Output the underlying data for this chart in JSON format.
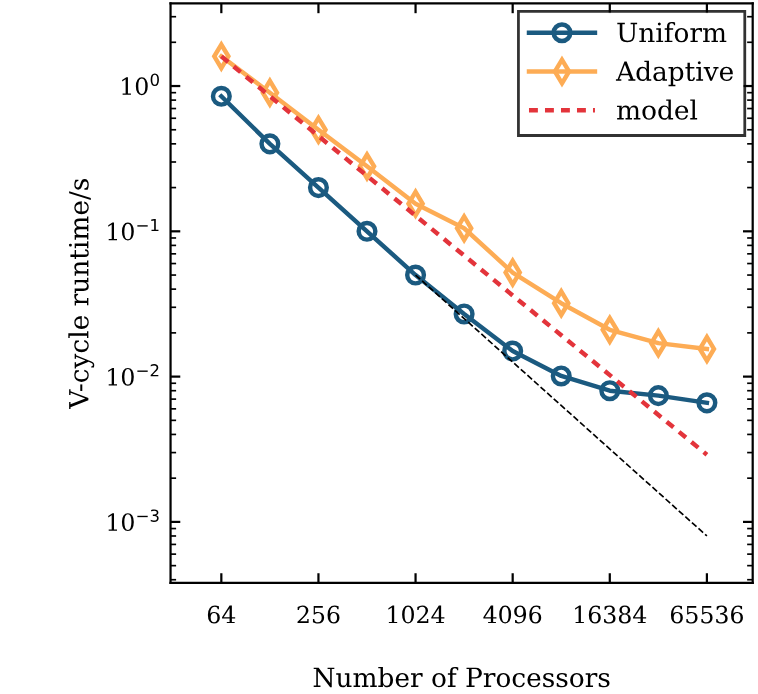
{
  "chart_data": {
    "type": "line",
    "xlabel": "Number of Processors",
    "ylabel": "V-cycle runtime/s",
    "log": "xy",
    "legend": "top right",
    "grid": false,
    "x": [
      64,
      128,
      256,
      512,
      1024,
      2048,
      4096,
      8192,
      16384,
      32768,
      65536
    ],
    "xlim": [
      31,
      126000
    ],
    "xticks": [
      64,
      256,
      1024,
      4096,
      16384,
      65536
    ],
    "ylim": [
      0.00038,
      3.7
    ],
    "yticks": [
      {
        "value": 1,
        "label": "10$^{0}$"
      },
      {
        "value": 0.1,
        "label": "10$^{−1}$"
      },
      {
        "value": 0.01,
        "label": "10$^{−2}$"
      },
      {
        "value": 0.001,
        "label": "10$^{−3}$"
      }
    ],
    "series": [
      {
        "name": "Uniform",
        "color": "#1b5a80",
        "marker": "circle",
        "line_style": "solid",
        "values": [
          0.85,
          0.4,
          0.2,
          0.1,
          0.05,
          0.027,
          0.015,
          0.0101,
          0.008,
          0.0074,
          0.0066
        ]
      },
      {
        "name": "Adaptive",
        "color": "#fdac55",
        "marker": "diamond",
        "line_style": "solid",
        "values": [
          1.6,
          0.9,
          0.5,
          0.28,
          0.155,
          0.105,
          0.052,
          0.032,
          0.021,
          0.017,
          0.0155
        ]
      },
      {
        "name": "model",
        "color": "#e3343b",
        "marker": "none",
        "line_style": "dashed",
        "x": [
          64,
          65536
        ],
        "values": [
          1.6,
          0.0029
        ]
      },
      {
        "color": "#000000",
        "marker": "none",
        "line_style": "dashed",
        "x": [
          1024,
          65536
        ],
        "values": [
          0.05,
          0.0008
        ]
      }
    ]
  }
}
